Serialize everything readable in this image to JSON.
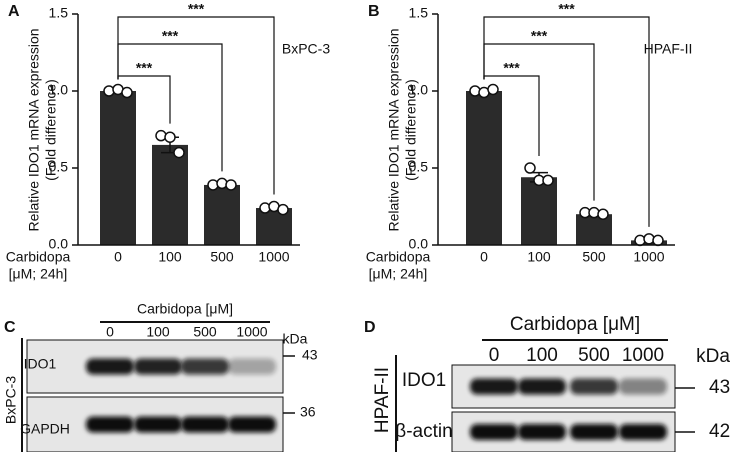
{
  "chart_data": [
    {
      "type": "bar",
      "panel": "A",
      "ylabel": [
        "Relative IDO1 mRNA expression",
        "(Fold difference)"
      ],
      "xlabel": [
        "Carbidopa",
        "[μM; 24h]"
      ],
      "cell_line": "BxPC-3",
      "categories": [
        "0",
        "100",
        "500",
        "1000"
      ],
      "values": [
        1.0,
        0.65,
        0.39,
        0.24
      ],
      "errors": [
        0.01,
        0.05,
        0.01,
        0.01
      ],
      "points": [
        [
          1.0,
          1.01,
          0.99
        ],
        [
          0.71,
          0.7,
          0.6
        ],
        [
          0.39,
          0.4,
          0.39
        ],
        [
          0.24,
          0.25,
          0.23
        ]
      ],
      "annotations": [
        "***",
        "***",
        "***"
      ],
      "color": "#2b2b2b",
      "ylim": [
        0,
        1.5
      ],
      "yticks": [
        {
          "value": 0,
          "label": "0.0"
        },
        0.5,
        {
          "value": 1,
          "label": "1.0"
        },
        1.5
      ]
    },
    {
      "type": "bar",
      "panel": "B",
      "ylabel": [
        "Relative IDO1 mRNA expression",
        "(Fold difference)"
      ],
      "xlabel": [
        "Carbidopa",
        "[μM; 24h]"
      ],
      "cell_line": "HPAF-II",
      "categories": [
        "0",
        "100",
        "500",
        "1000"
      ],
      "values": [
        1.0,
        0.44,
        0.2,
        0.03
      ],
      "errors": [
        0.01,
        0.03,
        0.01,
        0.01
      ],
      "points": [
        [
          1.0,
          0.99,
          1.01
        ],
        [
          0.5,
          0.42,
          0.42
        ],
        [
          0.21,
          0.21,
          0.2
        ],
        [
          0.03,
          0.04,
          0.03
        ]
      ],
      "annotations": [
        "***",
        "***",
        "***"
      ],
      "color": "#2b2b2b",
      "ylim": [
        0,
        1.5
      ],
      "yticks": [
        {
          "value": 0,
          "label": "0.0"
        },
        0.5,
        {
          "value": 1,
          "label": "1.0"
        },
        1.5
      ]
    }
  ],
  "blots": [
    {
      "panel": "C",
      "title": "Carbidopa [μM]",
      "lanes": [
        "0",
        "100",
        "500",
        "1000"
      ],
      "unit": "kDa",
      "cell_line": "BxPC-3",
      "rows": [
        {
          "label": "IDO1",
          "kda": "43"
        },
        {
          "label": "GAPDH",
          "kda": "36"
        }
      ]
    },
    {
      "panel": "D",
      "title": "Carbidopa [μM]",
      "lanes": [
        "0",
        "100",
        "500",
        "1000"
      ],
      "unit": "kDa",
      "cell_line": "HPAF-II",
      "rows": [
        {
          "label": "IDO1",
          "kda": "43"
        },
        {
          "label": "β-actin",
          "kda": "42"
        }
      ]
    }
  ]
}
